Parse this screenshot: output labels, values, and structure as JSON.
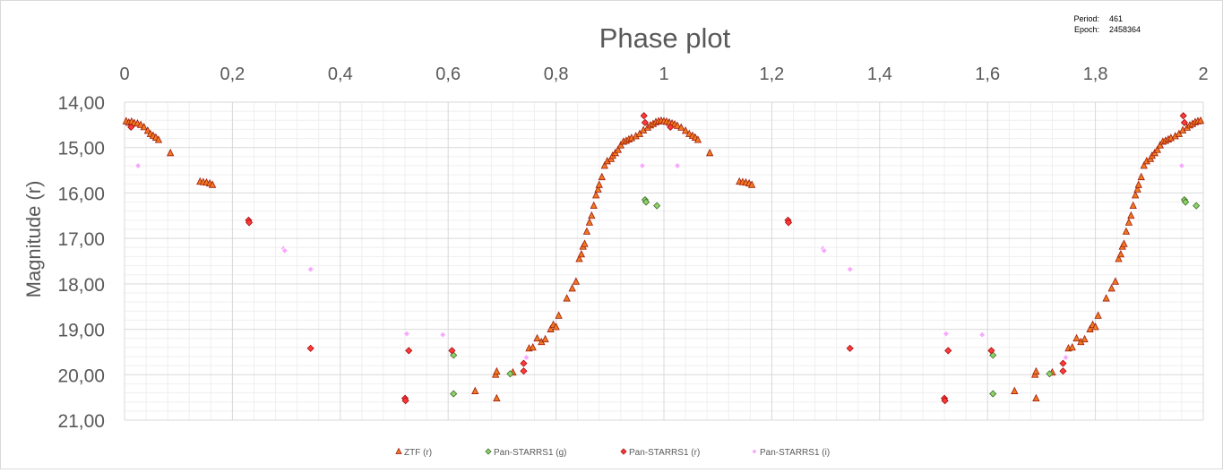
{
  "colors": {
    "background": "#ffffff",
    "grid": "#d9d9d9",
    "grid_minor": "#efefef",
    "text": "#595959",
    "ztf_fill": "#f07a1e",
    "ztf_stroke": "#9e1b10",
    "ps_g_fill": "#8fd16a",
    "ps_g_stroke": "#3f6e2a",
    "ps_r_fill": "#ff3b3b",
    "ps_r_stroke": "#a30d0d",
    "ps_i_fill": "#f7a8ff",
    "ps_i_stroke": "#ffffff"
  },
  "info": {
    "period_label": "Period:",
    "period_value": "461",
    "epoch_label": "Epoch:",
    "epoch_value": "2458364"
  },
  "chart_data": {
    "type": "scatter",
    "title": "Phase plot",
    "xlabel": "",
    "ylabel": "Magnitude (r)",
    "xlim": [
      0,
      2
    ],
    "ylim": [
      14,
      21
    ],
    "y_inverted": true,
    "x_axis_position": "top",
    "grid": true,
    "legend_position": "bottom",
    "x_ticks": [
      "0",
      "0,2",
      "0,4",
      "0,6",
      "0,8",
      "1",
      "1,2",
      "1,4",
      "1,6",
      "1,8",
      "2"
    ],
    "y_ticks": [
      "14,00",
      "15,00",
      "16,00",
      "17,00",
      "18,00",
      "19,00",
      "20,00",
      "21,00"
    ],
    "series": [
      {
        "name": "ZTF (r)",
        "marker": "triangle",
        "points": [
          [
            0.003,
            14.42
          ],
          [
            0.008,
            14.45
          ],
          [
            0.013,
            14.43
          ],
          [
            0.018,
            14.46
          ],
          [
            0.024,
            14.47
          ],
          [
            0.03,
            14.5
          ],
          [
            0.036,
            14.55
          ],
          [
            0.043,
            14.63
          ],
          [
            0.048,
            14.7
          ],
          [
            0.053,
            14.74
          ],
          [
            0.058,
            14.78
          ],
          [
            0.063,
            14.83
          ],
          [
            0.085,
            15.12
          ],
          [
            0.14,
            15.75
          ],
          [
            0.146,
            15.76
          ],
          [
            0.152,
            15.77
          ],
          [
            0.158,
            15.79
          ],
          [
            0.163,
            15.82
          ],
          [
            0.688,
            20.0
          ],
          [
            0.69,
            19.93
          ],
          [
            0.69,
            20.52
          ],
          [
            0.65,
            20.36
          ],
          [
            0.72,
            19.95
          ],
          [
            0.75,
            19.42
          ],
          [
            0.757,
            19.4
          ],
          [
            0.765,
            19.2
          ],
          [
            0.773,
            19.28
          ],
          [
            0.78,
            19.22
          ],
          [
            0.79,
            19.0
          ],
          [
            0.795,
            18.9
          ],
          [
            0.8,
            18.95
          ],
          [
            0.805,
            18.7
          ],
          [
            0.82,
            18.32
          ],
          [
            0.83,
            18.1
          ],
          [
            0.837,
            17.95
          ],
          [
            0.843,
            17.45
          ],
          [
            0.847,
            17.35
          ],
          [
            0.85,
            17.18
          ],
          [
            0.853,
            17.12
          ],
          [
            0.857,
            16.85
          ],
          [
            0.862,
            16.65
          ],
          [
            0.866,
            16.5
          ],
          [
            0.87,
            16.28
          ],
          [
            0.874,
            16.05
          ],
          [
            0.878,
            15.92
          ],
          [
            0.88,
            15.82
          ],
          [
            0.885,
            15.65
          ],
          [
            0.89,
            15.4
          ],
          [
            0.895,
            15.3
          ],
          [
            0.902,
            15.25
          ],
          [
            0.905,
            15.18
          ],
          [
            0.91,
            15.12
          ],
          [
            0.915,
            15.05
          ],
          [
            0.92,
            14.95
          ],
          [
            0.925,
            14.87
          ],
          [
            0.93,
            14.85
          ],
          [
            0.935,
            14.82
          ],
          [
            0.94,
            14.79
          ],
          [
            0.948,
            14.75
          ],
          [
            0.955,
            14.7
          ],
          [
            0.962,
            14.62
          ],
          [
            0.97,
            14.56
          ],
          [
            0.975,
            14.51
          ],
          [
            0.98,
            14.48
          ],
          [
            0.985,
            14.44
          ],
          [
            0.99,
            14.42
          ],
          [
            0.995,
            14.41
          ],
          [
            1.0,
            14.42
          ],
          [
            1.005,
            14.43
          ],
          [
            1.01,
            14.45
          ],
          [
            1.015,
            14.47
          ],
          [
            1.02,
            14.49
          ],
          [
            1.025,
            14.52
          ],
          [
            1.032,
            14.56
          ],
          [
            1.04,
            14.63
          ],
          [
            1.047,
            14.7
          ],
          [
            1.053,
            14.74
          ],
          [
            1.058,
            14.78
          ],
          [
            1.063,
            14.83
          ],
          [
            1.085,
            15.12
          ],
          [
            1.14,
            15.75
          ],
          [
            1.146,
            15.76
          ],
          [
            1.152,
            15.77
          ],
          [
            1.158,
            15.79
          ],
          [
            1.163,
            15.82
          ],
          [
            1.688,
            20.0
          ],
          [
            1.69,
            19.93
          ],
          [
            1.69,
            20.52
          ],
          [
            1.65,
            20.36
          ],
          [
            1.72,
            19.95
          ],
          [
            1.75,
            19.42
          ],
          [
            1.757,
            19.4
          ],
          [
            1.765,
            19.2
          ],
          [
            1.773,
            19.28
          ],
          [
            1.78,
            19.22
          ],
          [
            1.79,
            19.0
          ],
          [
            1.795,
            18.9
          ],
          [
            1.8,
            18.95
          ],
          [
            1.805,
            18.7
          ],
          [
            1.82,
            18.32
          ],
          [
            1.83,
            18.1
          ],
          [
            1.837,
            17.95
          ],
          [
            1.843,
            17.45
          ],
          [
            1.847,
            17.35
          ],
          [
            1.85,
            17.18
          ],
          [
            1.853,
            17.12
          ],
          [
            1.857,
            16.85
          ],
          [
            1.862,
            16.65
          ],
          [
            1.866,
            16.5
          ],
          [
            1.87,
            16.28
          ],
          [
            1.874,
            16.05
          ],
          [
            1.878,
            15.92
          ],
          [
            1.88,
            15.82
          ],
          [
            1.885,
            15.65
          ],
          [
            1.89,
            15.4
          ],
          [
            1.895,
            15.3
          ],
          [
            1.902,
            15.25
          ],
          [
            1.905,
            15.18
          ],
          [
            1.91,
            15.12
          ],
          [
            1.915,
            15.05
          ],
          [
            1.92,
            14.95
          ],
          [
            1.925,
            14.87
          ],
          [
            1.93,
            14.85
          ],
          [
            1.935,
            14.82
          ],
          [
            1.94,
            14.79
          ],
          [
            1.948,
            14.75
          ],
          [
            1.955,
            14.7
          ],
          [
            1.962,
            14.62
          ],
          [
            1.97,
            14.56
          ],
          [
            1.975,
            14.51
          ],
          [
            1.98,
            14.48
          ],
          [
            1.985,
            14.44
          ],
          [
            1.99,
            14.42
          ],
          [
            1.995,
            14.41
          ]
        ]
      },
      {
        "name": "Pan-STARRS1 (g)",
        "marker": "diamond",
        "points": [
          [
            0.61,
            20.42
          ],
          [
            0.61,
            19.57
          ],
          [
            0.715,
            19.98
          ],
          [
            0.965,
            16.15
          ],
          [
            0.967,
            16.2
          ],
          [
            0.987,
            16.28
          ],
          [
            1.61,
            20.42
          ],
          [
            1.61,
            19.57
          ],
          [
            1.715,
            19.98
          ],
          [
            1.965,
            16.15
          ],
          [
            1.967,
            16.2
          ],
          [
            1.987,
            16.28
          ]
        ]
      },
      {
        "name": "Pan-STARRS1 (r)",
        "marker": "diamond",
        "points": [
          [
            0.012,
            14.55
          ],
          [
            0.23,
            16.6
          ],
          [
            0.231,
            16.65
          ],
          [
            0.345,
            19.42
          ],
          [
            0.52,
            20.52
          ],
          [
            0.521,
            20.57
          ],
          [
            0.527,
            19.47
          ],
          [
            0.607,
            19.47
          ],
          [
            0.74,
            19.92
          ],
          [
            0.74,
            19.75
          ],
          [
            0.963,
            14.3
          ],
          [
            0.965,
            14.45
          ],
          [
            1.012,
            14.55
          ],
          [
            1.23,
            16.6
          ],
          [
            1.231,
            16.65
          ],
          [
            1.345,
            19.42
          ],
          [
            1.52,
            20.52
          ],
          [
            1.521,
            20.57
          ],
          [
            1.527,
            19.47
          ],
          [
            1.607,
            19.47
          ],
          [
            1.74,
            19.92
          ],
          [
            1.74,
            19.75
          ],
          [
            1.963,
            14.3
          ],
          [
            1.965,
            14.45
          ]
        ]
      },
      {
        "name": "Pan-STARRS1 (i)",
        "marker": "diamond",
        "points": [
          [
            0.025,
            15.4
          ],
          [
            0.295,
            17.22
          ],
          [
            0.297,
            17.27
          ],
          [
            0.345,
            17.68
          ],
          [
            0.523,
            19.1
          ],
          [
            0.59,
            19.12
          ],
          [
            0.745,
            19.62
          ],
          [
            0.96,
            15.4
          ],
          [
            1.025,
            15.4
          ],
          [
            1.295,
            17.22
          ],
          [
            1.297,
            17.27
          ],
          [
            1.345,
            17.68
          ],
          [
            1.523,
            19.1
          ],
          [
            1.59,
            19.12
          ],
          [
            1.745,
            19.62
          ],
          [
            1.96,
            15.4
          ]
        ]
      }
    ]
  }
}
